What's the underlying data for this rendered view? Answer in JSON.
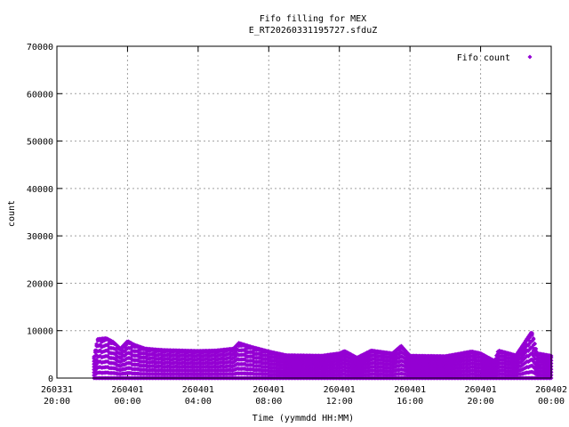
{
  "chart_data": {
    "type": "scatter",
    "title": "Fifo filling for MEX",
    "subtitle": "E_RT20260331195727.sfduZ",
    "xlabel": "Time (yymmdd HH:MM)",
    "ylabel": "count",
    "ylim": [
      0,
      70000
    ],
    "y_ticks": [
      0,
      10000,
      20000,
      30000,
      40000,
      50000,
      60000,
      70000
    ],
    "x_range_hours": [
      20,
      48
    ],
    "x_ticks": [
      {
        "hours": 20,
        "line1": "260331",
        "line2": "20:00"
      },
      {
        "hours": 24,
        "line1": "260401",
        "line2": "00:00"
      },
      {
        "hours": 28,
        "line1": "260401",
        "line2": "04:00"
      },
      {
        "hours": 32,
        "line1": "260401",
        "line2": "08:00"
      },
      {
        "hours": 36,
        "line1": "260401",
        "line2": "12:00"
      },
      {
        "hours": 40,
        "line1": "260401",
        "line2": "16:00"
      },
      {
        "hours": 44,
        "line1": "260401",
        "line2": "20:00"
      },
      {
        "hours": 48,
        "line1": "260402",
        "line2": "00:00"
      }
    ],
    "grid": true,
    "legend_position": "top-right",
    "series": [
      {
        "name": "Fifo count",
        "color": "#9400d3",
        "marker": "diamond",
        "time_range_hours": [
          22.1,
          48.0
        ],
        "envelope": [
          {
            "x": 22.1,
            "y": 4500
          },
          {
            "x": 22.3,
            "y": 8200
          },
          {
            "x": 22.8,
            "y": 8400
          },
          {
            "x": 23.2,
            "y": 7600
          },
          {
            "x": 23.6,
            "y": 6200
          },
          {
            "x": 24.0,
            "y": 7800
          },
          {
            "x": 24.4,
            "y": 7000
          },
          {
            "x": 25.0,
            "y": 6200
          },
          {
            "x": 26.0,
            "y": 5900
          },
          {
            "x": 28.0,
            "y": 5700
          },
          {
            "x": 29.0,
            "y": 5800
          },
          {
            "x": 30.0,
            "y": 6200
          },
          {
            "x": 30.3,
            "y": 7400
          },
          {
            "x": 31.0,
            "y": 6600
          },
          {
            "x": 32.0,
            "y": 5600
          },
          {
            "x": 33.0,
            "y": 4800
          },
          {
            "x": 35.0,
            "y": 4700
          },
          {
            "x": 36.0,
            "y": 5200
          },
          {
            "x": 36.3,
            "y": 5700
          },
          {
            "x": 37.0,
            "y": 4300
          },
          {
            "x": 37.8,
            "y": 5800
          },
          {
            "x": 39.0,
            "y": 5200
          },
          {
            "x": 39.5,
            "y": 6800
          },
          {
            "x": 40.0,
            "y": 4700
          },
          {
            "x": 42.0,
            "y": 4600
          },
          {
            "x": 43.5,
            "y": 5600
          },
          {
            "x": 44.0,
            "y": 5200
          },
          {
            "x": 44.8,
            "y": 3600
          },
          {
            "x": 45.0,
            "y": 5800
          },
          {
            "x": 46.0,
            "y": 4800
          },
          {
            "x": 46.9,
            "y": 9800
          },
          {
            "x": 47.2,
            "y": 5200
          },
          {
            "x": 48.0,
            "y": 4700
          }
        ]
      }
    ]
  }
}
